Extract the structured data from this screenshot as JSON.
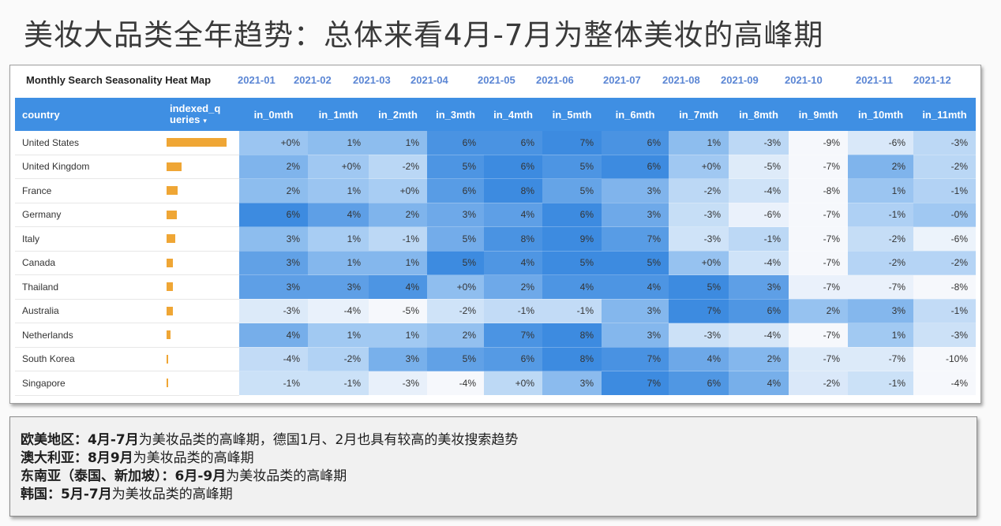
{
  "page": {
    "title": "美妆大品类全年趋势：总体来看4月-7月为整体美妆的高峰期"
  },
  "chart_data": {
    "type": "heatmap",
    "title": "Monthly Search Seasonality Heat Map",
    "month_labels": [
      "2021-01",
      "2021-02",
      "2021-03",
      "2021-04",
      "2021-05",
      "2021-06",
      "2021-07",
      "2021-08",
      "2021-09",
      "2021-10",
      "2021-11",
      "2021-12"
    ],
    "columns": {
      "country": "country",
      "indexed": "indexed_queries",
      "indexed_display_line1": "indexed_q",
      "indexed_display_line2": "ueries",
      "sort_icon": "sort-desc-icon",
      "months": [
        "in_0mth",
        "in_1mth",
        "in_2mth",
        "in_3mth",
        "in_4mth",
        "in_5mth",
        "in_6mth",
        "in_7mth",
        "in_8mth",
        "in_9mth",
        "in_10mth",
        "in_11mth"
      ]
    },
    "colors": {
      "header": "#3f8fe3",
      "bar": "#efa635",
      "month_label": "#5b86d4",
      "scale_low": "#f7f9fd",
      "scale_high": "#3f8fe3"
    },
    "rows": [
      {
        "country": "United States",
        "indexed_bar_pct": 100,
        "values": [
          "+0%",
          "1%",
          "1%",
          "6%",
          "6%",
          "7%",
          "6%",
          "1%",
          "-3%",
          "-9%",
          "-6%",
          "-3%"
        ],
        "nums": [
          0,
          1,
          1,
          6,
          6,
          7,
          6,
          1,
          -3,
          -9,
          -6,
          -3
        ]
      },
      {
        "country": "United Kingdom",
        "indexed_bar_pct": 25,
        "values": [
          "2%",
          "+0%",
          "-2%",
          "5%",
          "6%",
          "5%",
          "6%",
          "+0%",
          "-5%",
          "-7%",
          "2%",
          "-2%"
        ],
        "nums": [
          2,
          0,
          -2,
          5,
          6,
          5,
          6,
          0,
          -5,
          -7,
          2,
          -2
        ]
      },
      {
        "country": "France",
        "indexed_bar_pct": 19,
        "values": [
          "2%",
          "1%",
          "+0%",
          "6%",
          "8%",
          "5%",
          "3%",
          "-2%",
          "-4%",
          "-8%",
          "1%",
          "-1%"
        ],
        "nums": [
          2,
          1,
          0,
          6,
          8,
          5,
          3,
          -2,
          -4,
          -8,
          1,
          -1
        ]
      },
      {
        "country": "Germany",
        "indexed_bar_pct": 17,
        "values": [
          "6%",
          "4%",
          "2%",
          "3%",
          "4%",
          "6%",
          "3%",
          "-3%",
          "-6%",
          "-7%",
          "-1%",
          "-0%"
        ],
        "nums": [
          6,
          4,
          2,
          3,
          4,
          6,
          3,
          -3,
          -6,
          -7,
          -1,
          0
        ]
      },
      {
        "country": "Italy",
        "indexed_bar_pct": 15,
        "values": [
          "3%",
          "1%",
          "-1%",
          "5%",
          "8%",
          "9%",
          "7%",
          "-3%",
          "-1%",
          "-7%",
          "-2%",
          "-6%"
        ],
        "nums": [
          3,
          1,
          -1,
          5,
          8,
          9,
          7,
          -3,
          -1,
          -7,
          -2,
          -6
        ]
      },
      {
        "country": "Canada",
        "indexed_bar_pct": 11,
        "values": [
          "3%",
          "1%",
          "1%",
          "5%",
          "4%",
          "5%",
          "5%",
          "+0%",
          "-4%",
          "-7%",
          "-2%",
          "-2%"
        ],
        "nums": [
          3,
          1,
          1,
          5,
          4,
          5,
          5,
          0,
          -4,
          -7,
          -2,
          -2
        ]
      },
      {
        "country": "Thailand",
        "indexed_bar_pct": 10,
        "values": [
          "3%",
          "3%",
          "4%",
          "+0%",
          "2%",
          "4%",
          "4%",
          "5%",
          "3%",
          "-7%",
          "-7%",
          "-8%"
        ],
        "nums": [
          3,
          3,
          4,
          0,
          2,
          4,
          4,
          5,
          3,
          -7,
          -7,
          -8
        ]
      },
      {
        "country": "Australia",
        "indexed_bar_pct": 10,
        "values": [
          "-3%",
          "-4%",
          "-5%",
          "-2%",
          "-1%",
          "-1%",
          "3%",
          "7%",
          "6%",
          "2%",
          "3%",
          "-1%"
        ],
        "nums": [
          -3,
          -4,
          -5,
          -2,
          -1,
          -1,
          3,
          7,
          6,
          2,
          3,
          -1
        ]
      },
      {
        "country": "Netherlands",
        "indexed_bar_pct": 6,
        "values": [
          "4%",
          "1%",
          "1%",
          "2%",
          "7%",
          "8%",
          "3%",
          "-3%",
          "-4%",
          "-7%",
          "1%",
          "-3%"
        ],
        "nums": [
          4,
          1,
          1,
          2,
          7,
          8,
          3,
          -3,
          -4,
          -7,
          1,
          -3
        ]
      },
      {
        "country": "South Korea",
        "indexed_bar_pct": 2,
        "values": [
          "-4%",
          "-2%",
          "3%",
          "5%",
          "6%",
          "8%",
          "7%",
          "4%",
          "2%",
          "-7%",
          "-7%",
          "-10%"
        ],
        "nums": [
          -4,
          -2,
          3,
          5,
          6,
          8,
          7,
          4,
          2,
          -7,
          -7,
          -10
        ]
      },
      {
        "country": "Singapore",
        "indexed_bar_pct": 2,
        "values": [
          "-1%",
          "-1%",
          "-3%",
          "-4%",
          "+0%",
          "3%",
          "7%",
          "6%",
          "4%",
          "-2%",
          "-1%",
          "-4%"
        ],
        "nums": [
          -1,
          -1,
          -3,
          -4,
          0,
          3,
          7,
          6,
          4,
          -2,
          -1,
          -4
        ]
      }
    ]
  },
  "notes": [
    {
      "label": "欧美地区：",
      "bold": "4月-7月",
      "text": "为美妆品类的高峰期，德国1月、2月也具有较高的美妆搜索趋势"
    },
    {
      "label": "澳大利亚：",
      "bold": "8月9月",
      "text": "为美妆品类的高峰期"
    },
    {
      "label": "东南亚（泰国、新加坡）：",
      "bold": "6月-9月",
      "text": "为美妆品类的高峰期"
    },
    {
      "label": "韩国：",
      "bold": "5月-7月",
      "text": "为美妆品类的高峰期"
    }
  ]
}
